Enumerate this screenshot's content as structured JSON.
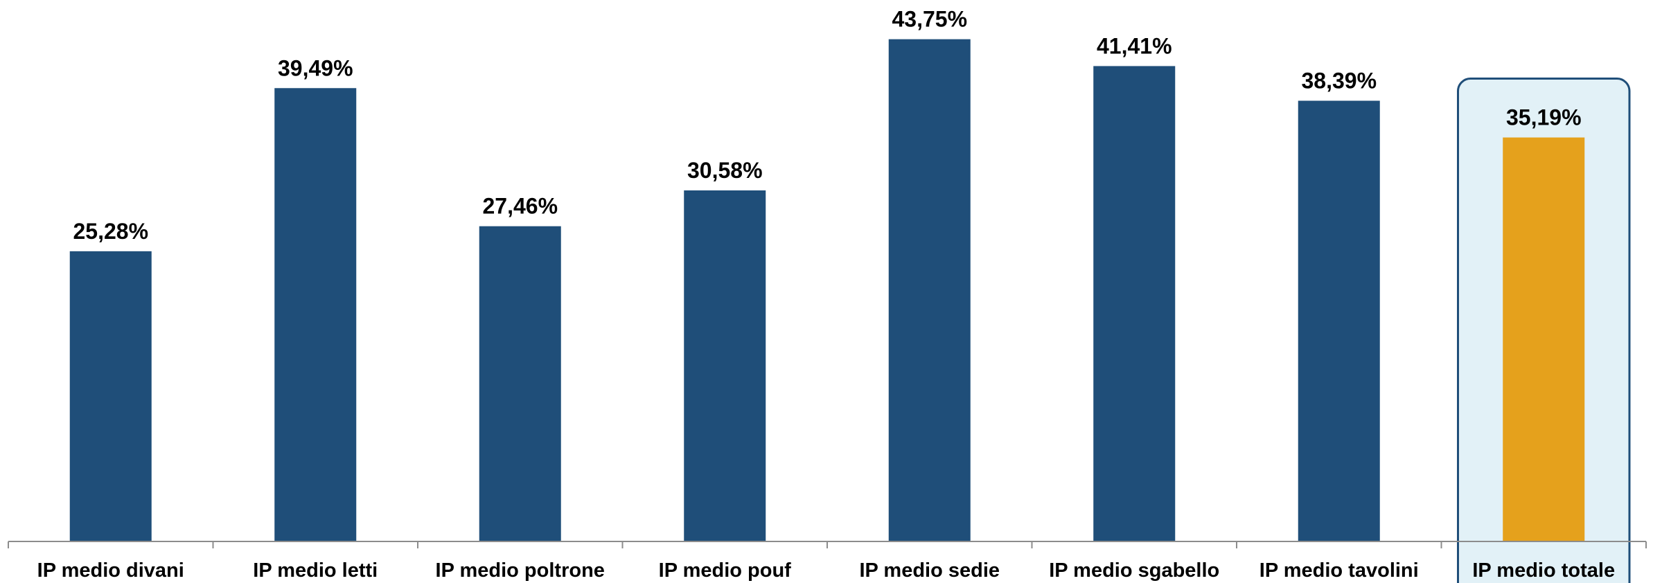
{
  "chart_data": {
    "type": "bar",
    "title": "",
    "xlabel": "",
    "ylabel": "",
    "ylim": [
      0,
      45
    ],
    "grid": false,
    "legend": "none",
    "categories": [
      "IP medio divani",
      "IP medio letti",
      "IP medio poltrone",
      "IP medio pouf",
      "IP medio sedie",
      "IP medio sgabello",
      "IP medio tavolini",
      "IP medio totale"
    ],
    "values": [
      25.28,
      39.49,
      27.46,
      30.58,
      43.75,
      41.41,
      38.39,
      35.19
    ],
    "value_labels": [
      "25,28%",
      "39,49%",
      "27,46%",
      "30,58%",
      "43,75%",
      "41,41%",
      "38,39%",
      "35,19%"
    ],
    "highlight_index": 7,
    "colors": {
      "bar": "#1f4e79",
      "highlight_bar": "#e5a11c",
      "highlight_fill": "#e2f1f7",
      "highlight_border": "#1f4e79",
      "axis": "#8c8c8c"
    }
  }
}
